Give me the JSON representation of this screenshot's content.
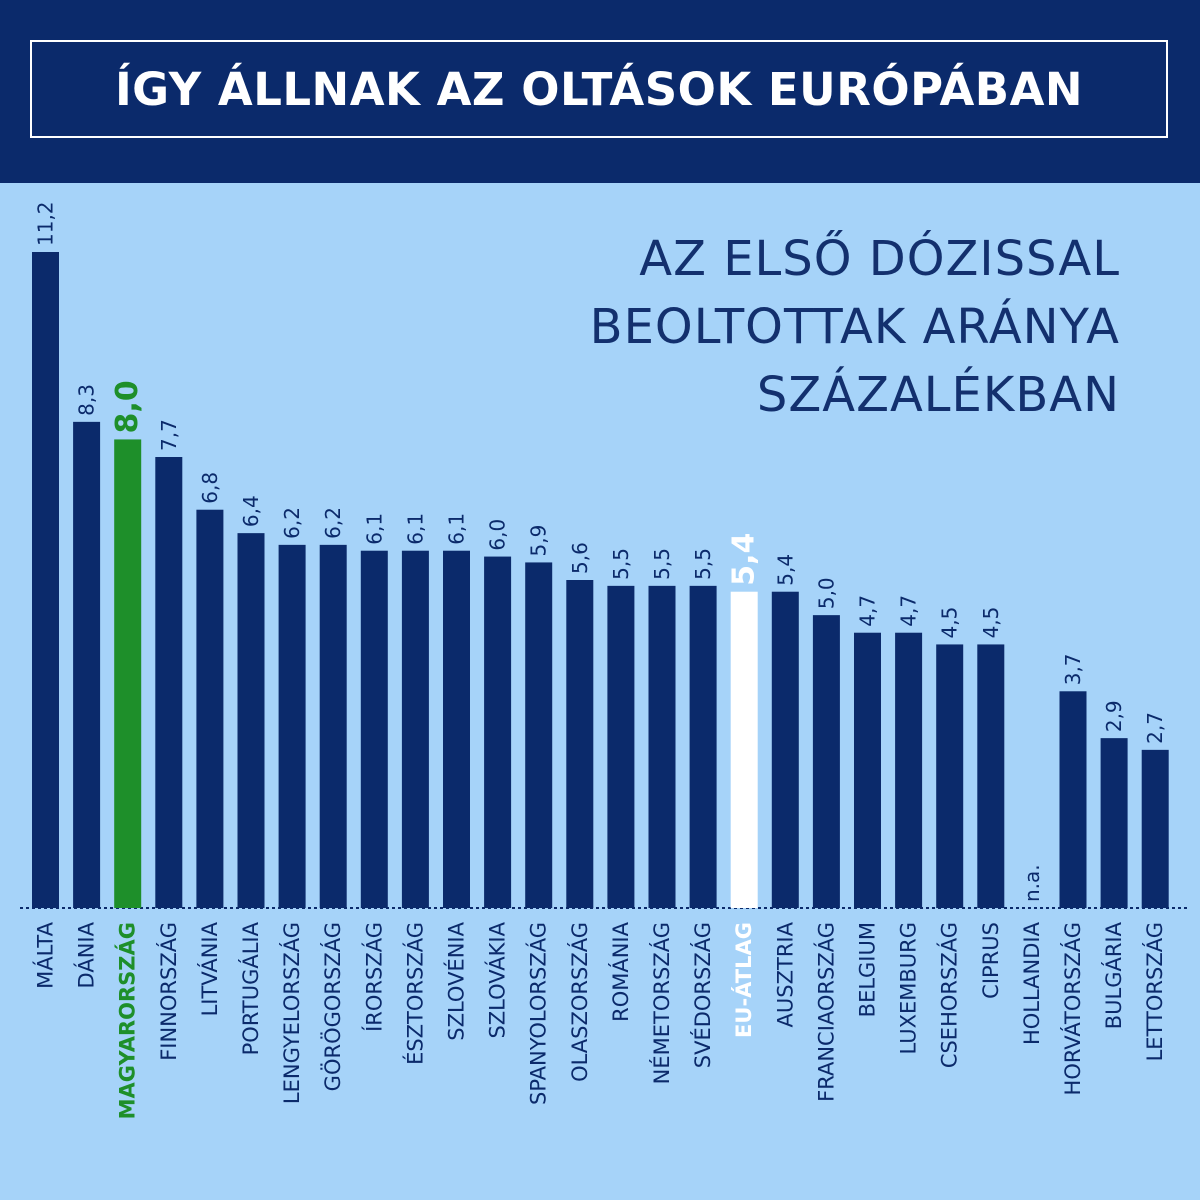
{
  "header": {
    "title": "ÍGY ÁLLNAK AZ OLTÁSOK EURÓPÁBAN"
  },
  "subtitle_lines": [
    "AZ ELSŐ DÓZISSAL",
    "BEOLTOTTAK ARÁNYA",
    "SZÁZALÉKBAN"
  ],
  "colors": {
    "background": "#a6d3f9",
    "header": "#0b2a6b",
    "bar": "#0b2a6b",
    "highlight_hungary": "#1e8f2a",
    "highlight_eu": "#ffffff"
  },
  "chart_data": {
    "type": "bar",
    "title": "AZ ELSŐ DÓZISSAL BEOLTOTTAK ARÁNYA SZÁZALÉKBAN",
    "ylim": [
      0,
      11.2
    ],
    "grid": false,
    "categories": [
      "MÁLTA",
      "DÁNIA",
      "MAGYARORSZÁG",
      "FINNORSZÁG",
      "LITVÁNIA",
      "PORTUGÁLIA",
      "LENGYELORSZÁG",
      "GÖRÖGORSZÁG",
      "ÍRORSZÁG",
      "ÉSZTORSZÁG",
      "SZLOVÉNIA",
      "SZLOVÁKIA",
      "SPANYOLORSZÁG",
      "OLASZORSZÁG",
      "ROMÁNIA",
      "NÉMETORSZÁG",
      "SVÉDORSZÁG",
      "EU-ÁTLAG",
      "AUSZTRIA",
      "FRANCIAORSZÁG",
      "BELGIUM",
      "LUXEMBURG",
      "CSEHORSZÁG",
      "CIPRUS",
      "HOLLANDIA",
      "HORVÁTORSZÁG",
      "BULGÁRIA",
      "LETTORSZÁG"
    ],
    "values": [
      11.2,
      8.3,
      8.0,
      7.7,
      6.8,
      6.4,
      6.2,
      6.2,
      6.1,
      6.1,
      6.1,
      6.0,
      5.9,
      5.6,
      5.5,
      5.5,
      5.5,
      5.4,
      5.4,
      5.0,
      4.7,
      4.7,
      4.5,
      4.5,
      null,
      3.7,
      2.9,
      2.7
    ],
    "value_labels": [
      "11,2",
      "8,3",
      "8,0",
      "7,7",
      "6,8",
      "6,4",
      "6,2",
      "6,2",
      "6,1",
      "6,1",
      "6,1",
      "6,0",
      "5,9",
      "5,6",
      "5,5",
      "5,5",
      "5,5",
      "5,4",
      "5,4",
      "5,0",
      "4,7",
      "4,7",
      "4,5",
      "4,5",
      "n.a.",
      "3,7",
      "2,9",
      "2,7"
    ],
    "highlights": {
      "MAGYARORSZÁG": "highlight_hungary",
      "EU-ÁTLAG": "highlight_eu"
    }
  }
}
